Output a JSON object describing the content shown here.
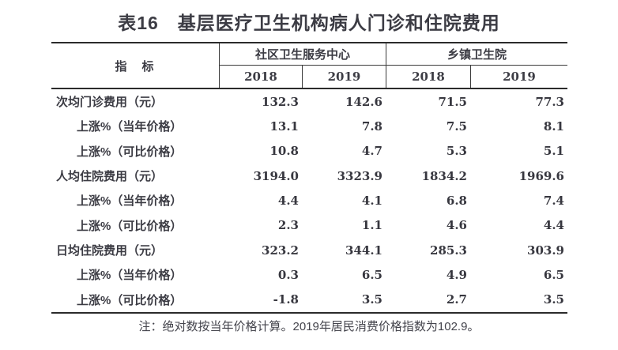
{
  "title": "表16　基层医疗卫生机构病人门诊和住院费用",
  "note": "注：绝对数按当年价格计算。2019年居民消费价格指数为102.9。",
  "table": {
    "indicator_header": "指　标",
    "groups": [
      {
        "label": "社区卫生服务中心",
        "years": [
          "2018",
          "2019"
        ]
      },
      {
        "label": "乡镇卫生院",
        "years": [
          "2018",
          "2019"
        ]
      }
    ],
    "rows": [
      {
        "label": "次均门诊费用（元）",
        "values": [
          "132.3",
          "142.6",
          "71.5",
          "77.3"
        ]
      },
      {
        "label": "上涨%（当年价格）",
        "values": [
          "13.1",
          "7.8",
          "7.5",
          "8.1"
        ]
      },
      {
        "label": "上涨%（可比价格）",
        "values": [
          "10.8",
          "4.7",
          "5.3",
          "5.1"
        ]
      },
      {
        "label": "人均住院费用（元）",
        "values": [
          "3194.0",
          "3323.9",
          "1834.2",
          "1969.6"
        ]
      },
      {
        "label": "上涨%（当年价格）",
        "values": [
          "4.4",
          "4.1",
          "6.8",
          "7.4"
        ]
      },
      {
        "label": "上涨%（可比价格）",
        "values": [
          "2.3",
          "1.1",
          "4.6",
          "4.4"
        ]
      },
      {
        "label": "日均住院费用（元）",
        "values": [
          "323.2",
          "344.1",
          "285.3",
          "303.9"
        ]
      },
      {
        "label": "上涨%（当年价格）",
        "values": [
          "0.3",
          "6.5",
          "4.9",
          "6.5"
        ]
      },
      {
        "label": "上涨%（可比价格）",
        "values": [
          "-1.8",
          "3.5",
          "2.7",
          "3.5"
        ]
      }
    ]
  },
  "colors": {
    "text": "#3c3c44",
    "line_heavy": "#2b2b2b",
    "line_light": "#3a3a3a",
    "background": "#ffffff"
  }
}
